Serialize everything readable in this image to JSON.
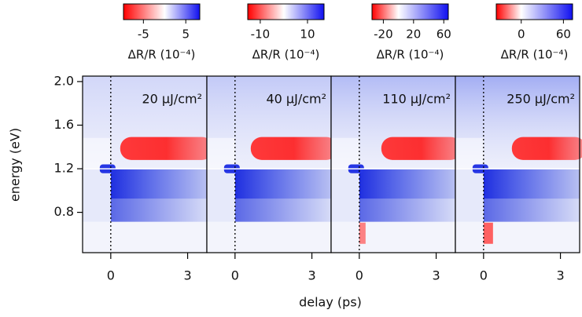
{
  "figure": {
    "xlabel": "delay (ps)",
    "ylabel": "energy (eV)"
  },
  "chart_data": [
    {
      "type": "heatmap",
      "title": "20 μJ/cm²",
      "xlim": [
        -1.1,
        3.75
      ],
      "xticks": [
        0,
        3
      ],
      "ylim": [
        0.43,
        2.05
      ],
      "yticks": [
        {
          "value": 2,
          "label": "2.0"
        },
        1.6,
        1.2,
        0.8
      ],
      "colorbar": {
        "label": "ΔR/R (10⁻⁴)",
        "clim": [
          -9.7,
          8.3
        ],
        "ticks": [
          -5,
          5
        ],
        "colors": [
          "#ff0000",
          "#ffffff",
          "#1010f0"
        ]
      }
    },
    {
      "type": "heatmap",
      "title": "40 μJ/cm²",
      "xlim": [
        -1.1,
        3.75
      ],
      "xticks": [
        0,
        3
      ],
      "ylim": [
        0.43,
        2.05
      ],
      "colorbar": {
        "label": "ΔR/R (10⁻⁴)",
        "clim": [
          -15.3,
          17
        ],
        "ticks": [
          -10,
          10
        ],
        "colors": [
          "#ff0000",
          "#ffffff",
          "#1010f0"
        ]
      }
    },
    {
      "type": "heatmap",
      "title": "110 μJ/cm²",
      "xlim": [
        -1.1,
        3.75
      ],
      "xticks": [
        0,
        3
      ],
      "ylim": [
        0.43,
        2.05
      ],
      "colorbar": {
        "label": "ΔR/R (10⁻⁴)",
        "clim": [
          -35,
          66
        ],
        "ticks": [
          -20,
          20,
          60
        ],
        "colors": [
          "#ff0000",
          "#ffffff",
          "#1010f0"
        ]
      }
    },
    {
      "type": "heatmap",
      "title": "250 μJ/cm²",
      "xlim": [
        -1.1,
        3.75
      ],
      "xticks": [
        0,
        3
      ],
      "ylim": [
        0.43,
        2.05
      ],
      "colorbar": {
        "label": "ΔR/R (10⁻⁴)",
        "clim": [
          -35.5,
          73
        ],
        "ticks": [
          0,
          60
        ],
        "colors": [
          "#ff0000",
          "#ffffff",
          "#1010f0"
        ]
      }
    }
  ]
}
